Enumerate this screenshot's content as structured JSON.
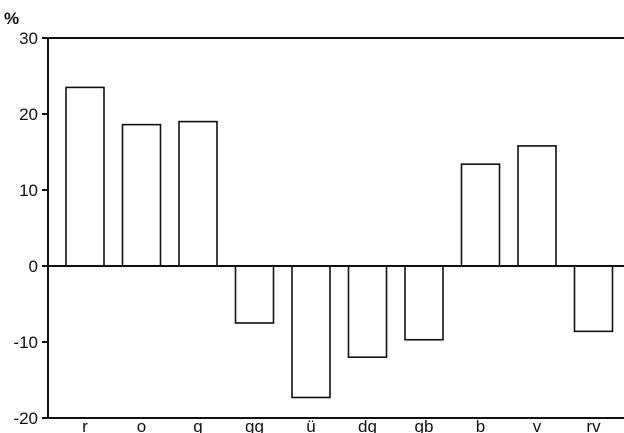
{
  "chart_data": {
    "type": "bar",
    "unit_label": "%",
    "categories": [
      "r",
      "o",
      "g",
      "gg",
      "ü",
      "dg",
      "gb",
      "b",
      "v",
      "rv"
    ],
    "values": [
      23.5,
      18.6,
      19.0,
      -7.5,
      -17.3,
      -12.0,
      -9.7,
      13.4,
      15.8,
      -8.6
    ],
    "y_ticks": [
      "30",
      "20",
      "10",
      "0",
      "-10",
      "-20"
    ],
    "ylim": [
      -20,
      30
    ],
    "grid": false,
    "bar_fill": "#ffffff",
    "bar_stroke": "#111111"
  }
}
